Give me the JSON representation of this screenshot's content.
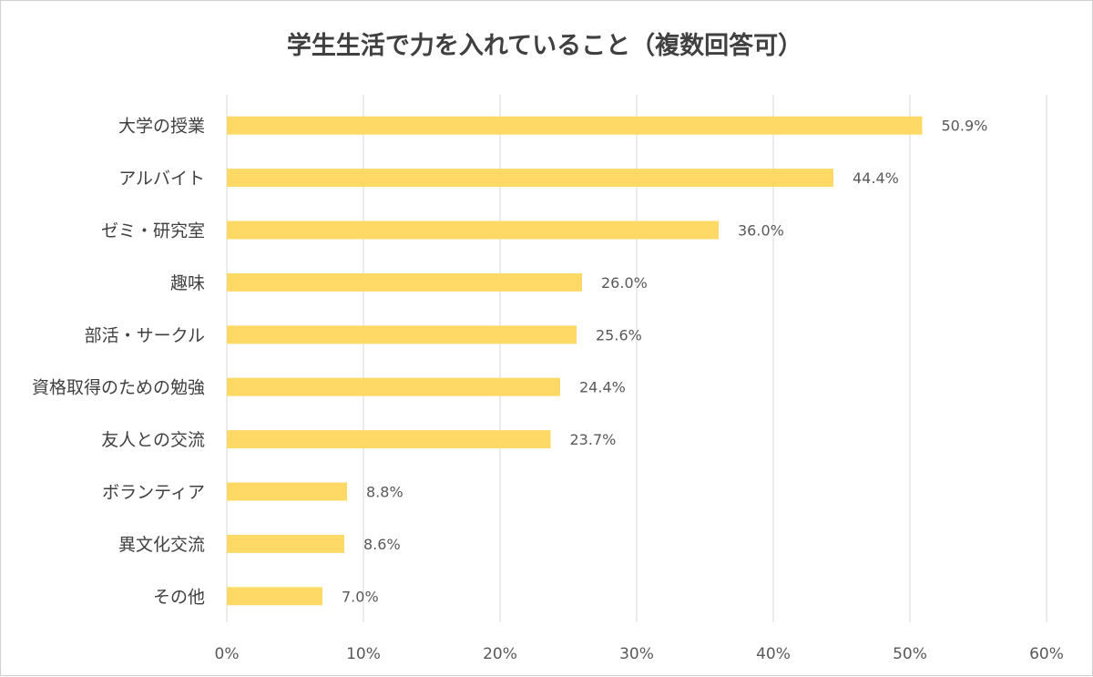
{
  "chart_data": {
    "type": "bar",
    "orientation": "horizontal",
    "title": "学生生活で力を入れていること（複数回答可）",
    "categories": [
      "大学の授業",
      "アルバイト",
      "ゼミ・研究室",
      "趣味",
      "部活・サークル",
      "資格取得のための勉強",
      "友人との交流",
      "ボランティア",
      "異文化交流",
      "その他"
    ],
    "values": [
      50.9,
      44.4,
      36.0,
      26.0,
      25.6,
      24.4,
      23.7,
      8.8,
      8.6,
      7.0
    ],
    "data_labels": [
      "50.9%",
      "44.4%",
      "36.0%",
      "26.0%",
      "25.6%",
      "24.4%",
      "23.7%",
      "8.8%",
      "8.6%",
      "7.0%"
    ],
    "xlim": [
      0,
      60
    ],
    "x_ticks": [
      0,
      10,
      20,
      30,
      40,
      50,
      60
    ],
    "x_tick_labels": [
      "0%",
      "10%",
      "20%",
      "30%",
      "40%",
      "50%",
      "60%"
    ],
    "grid": true,
    "legend": "none",
    "bar_color": "#ffd966",
    "grid_color": "#d9d9d9"
  }
}
